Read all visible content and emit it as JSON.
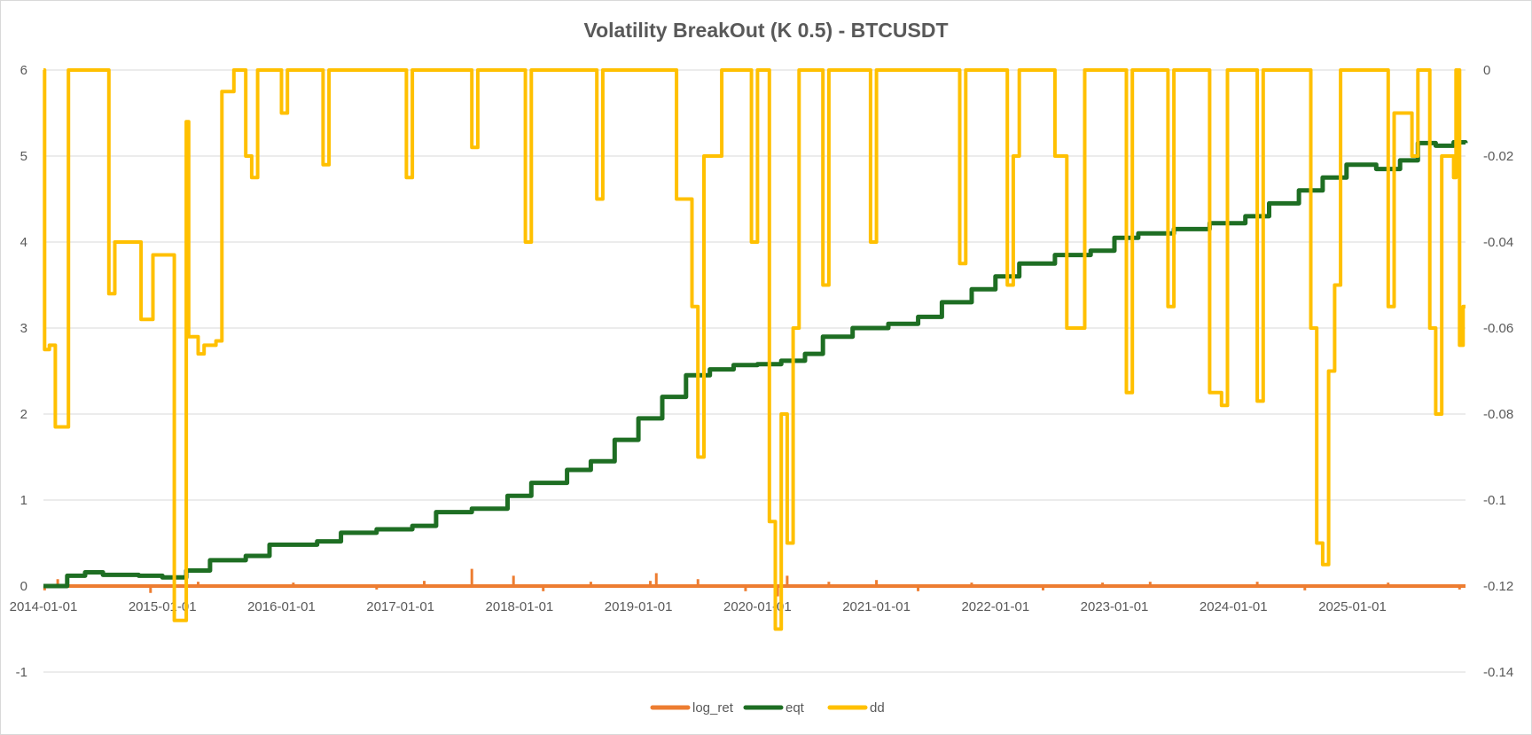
{
  "chart_data": {
    "type": "line",
    "title": "Volatility BreakOut (K 0.5) - BTCUSDT",
    "x_tick_labels": [
      "2014-01-01",
      "2015-01-01",
      "2016-01-01",
      "2017-01-01",
      "2018-01-01",
      "2019-01-01",
      "2020-01-01",
      "2021-01-01",
      "2022-01-01",
      "2023-01-01",
      "2024-01-01",
      "2025-01-01"
    ],
    "x_range": [
      2014.0,
      2025.95
    ],
    "y_left": {
      "min": -1,
      "max": 6,
      "ticks": [
        "-1",
        "0",
        "1",
        "2",
        "3",
        "4",
        "5",
        "6"
      ]
    },
    "y_right": {
      "min": -0.14,
      "max": 0,
      "ticks": [
        "-0.14",
        "-0.12",
        "-0.1",
        "-0.08",
        "-0.06",
        "-0.04",
        "-0.02",
        "0"
      ]
    },
    "grid": "horizontal",
    "legend_position": "bottom",
    "series": [
      {
        "name": "log_ret",
        "color": "#ed7d31",
        "axis": "left",
        "baseline": 0,
        "spikes": [
          [
            2014.01,
            -0.05
          ],
          [
            2014.12,
            0.08
          ],
          [
            2014.9,
            -0.08
          ],
          [
            2015.3,
            0.05
          ],
          [
            2016.1,
            0.04
          ],
          [
            2016.8,
            -0.04
          ],
          [
            2017.2,
            0.06
          ],
          [
            2017.6,
            0.2
          ],
          [
            2017.95,
            0.12
          ],
          [
            2018.2,
            -0.06
          ],
          [
            2018.6,
            0.05
          ],
          [
            2019.1,
            0.06
          ],
          [
            2019.15,
            0.15
          ],
          [
            2019.5,
            0.08
          ],
          [
            2019.9,
            -0.06
          ],
          [
            2020.17,
            -0.12
          ],
          [
            2020.25,
            0.12
          ],
          [
            2020.6,
            0.05
          ],
          [
            2021.0,
            0.07
          ],
          [
            2021.35,
            -0.06
          ],
          [
            2021.8,
            0.04
          ],
          [
            2022.4,
            -0.05
          ],
          [
            2022.9,
            0.04
          ],
          [
            2023.3,
            0.05
          ],
          [
            2024.2,
            0.05
          ],
          [
            2024.6,
            -0.05
          ],
          [
            2025.3,
            0.04
          ],
          [
            2025.9,
            -0.04
          ]
        ]
      },
      {
        "name": "eqt",
        "color": "#1e6e23",
        "axis": "left",
        "points": [
          [
            2014.0,
            0.0
          ],
          [
            2014.15,
            0.0
          ],
          [
            2014.2,
            0.12
          ],
          [
            2014.35,
            0.16
          ],
          [
            2014.5,
            0.13
          ],
          [
            2014.8,
            0.12
          ],
          [
            2015.0,
            0.1
          ],
          [
            2015.2,
            0.18
          ],
          [
            2015.4,
            0.3
          ],
          [
            2015.7,
            0.35
          ],
          [
            2015.9,
            0.48
          ],
          [
            2016.3,
            0.52
          ],
          [
            2016.5,
            0.62
          ],
          [
            2016.8,
            0.66
          ],
          [
            2017.1,
            0.7
          ],
          [
            2017.3,
            0.86
          ],
          [
            2017.6,
            0.9
          ],
          [
            2017.9,
            1.05
          ],
          [
            2018.1,
            1.2
          ],
          [
            2018.4,
            1.35
          ],
          [
            2018.6,
            1.45
          ],
          [
            2018.8,
            1.7
          ],
          [
            2019.0,
            1.95
          ],
          [
            2019.2,
            2.2
          ],
          [
            2019.4,
            2.45
          ],
          [
            2019.6,
            2.52
          ],
          [
            2019.8,
            2.57
          ],
          [
            2020.0,
            2.58
          ],
          [
            2020.2,
            2.62
          ],
          [
            2020.4,
            2.7
          ],
          [
            2020.55,
            2.9
          ],
          [
            2020.8,
            3.0
          ],
          [
            2021.1,
            3.05
          ],
          [
            2021.35,
            3.13
          ],
          [
            2021.55,
            3.3
          ],
          [
            2021.8,
            3.45
          ],
          [
            2022.0,
            3.6
          ],
          [
            2022.2,
            3.75
          ],
          [
            2022.5,
            3.85
          ],
          [
            2022.8,
            3.9
          ],
          [
            2023.0,
            4.05
          ],
          [
            2023.2,
            4.1
          ],
          [
            2023.5,
            4.15
          ],
          [
            2023.8,
            4.22
          ],
          [
            2024.1,
            4.3
          ],
          [
            2024.3,
            4.45
          ],
          [
            2024.55,
            4.6
          ],
          [
            2024.75,
            4.75
          ],
          [
            2024.95,
            4.9
          ],
          [
            2025.2,
            4.85
          ],
          [
            2025.4,
            4.95
          ],
          [
            2025.55,
            5.15
          ],
          [
            2025.7,
            5.12
          ],
          [
            2025.85,
            5.16
          ],
          [
            2025.95,
            5.15
          ]
        ]
      },
      {
        "name": "dd",
        "color": "#ffc000",
        "axis": "right",
        "points": [
          [
            2014.0,
            0.0
          ],
          [
            2014.01,
            -0.065
          ],
          [
            2014.05,
            -0.064
          ],
          [
            2014.1,
            -0.083
          ],
          [
            2014.2,
            -0.083
          ],
          [
            2014.21,
            0.0
          ],
          [
            2014.5,
            0.0
          ],
          [
            2014.55,
            -0.052
          ],
          [
            2014.6,
            -0.04
          ],
          [
            2014.8,
            -0.04
          ],
          [
            2014.82,
            -0.058
          ],
          [
            2014.9,
            -0.058
          ],
          [
            2014.92,
            -0.043
          ],
          [
            2015.05,
            -0.043
          ],
          [
            2015.1,
            -0.128
          ],
          [
            2015.18,
            -0.128
          ],
          [
            2015.2,
            -0.012
          ],
          [
            2015.22,
            -0.062
          ],
          [
            2015.3,
            -0.066
          ],
          [
            2015.35,
            -0.064
          ],
          [
            2015.45,
            -0.063
          ],
          [
            2015.5,
            -0.005
          ],
          [
            2015.6,
            0.0
          ],
          [
            2015.7,
            -0.02
          ],
          [
            2015.75,
            -0.025
          ],
          [
            2015.8,
            0.0
          ],
          [
            2016.0,
            -0.01
          ],
          [
            2016.05,
            0.0
          ],
          [
            2016.3,
            0.0
          ],
          [
            2016.35,
            -0.022
          ],
          [
            2016.4,
            0.0
          ],
          [
            2017.0,
            0.0
          ],
          [
            2017.05,
            -0.025
          ],
          [
            2017.1,
            0.0
          ],
          [
            2017.6,
            -0.018
          ],
          [
            2017.65,
            0.0
          ],
          [
            2018.0,
            0.0
          ],
          [
            2018.05,
            -0.04
          ],
          [
            2018.1,
            0.0
          ],
          [
            2018.6,
            0.0
          ],
          [
            2018.65,
            -0.03
          ],
          [
            2018.7,
            0.0
          ],
          [
            2019.3,
            0.0
          ],
          [
            2019.32,
            -0.03
          ],
          [
            2019.4,
            -0.03
          ],
          [
            2019.45,
            -0.055
          ],
          [
            2019.5,
            -0.09
          ],
          [
            2019.55,
            -0.02
          ],
          [
            2019.7,
            0.0
          ],
          [
            2019.9,
            0.0
          ],
          [
            2019.95,
            -0.04
          ],
          [
            2020.0,
            0.0
          ],
          [
            2020.1,
            -0.105
          ],
          [
            2020.15,
            -0.13
          ],
          [
            2020.2,
            -0.08
          ],
          [
            2020.25,
            -0.11
          ],
          [
            2020.3,
            -0.06
          ],
          [
            2020.35,
            0.0
          ],
          [
            2020.5,
            0.0
          ],
          [
            2020.55,
            -0.05
          ],
          [
            2020.6,
            0.0
          ],
          [
            2020.9,
            0.0
          ],
          [
            2020.95,
            -0.04
          ],
          [
            2021.0,
            0.0
          ],
          [
            2021.6,
            0.0
          ],
          [
            2021.7,
            -0.045
          ],
          [
            2021.75,
            0.0
          ],
          [
            2022.0,
            0.0
          ],
          [
            2022.1,
            -0.05
          ],
          [
            2022.15,
            -0.02
          ],
          [
            2022.2,
            0.0
          ],
          [
            2022.5,
            -0.02
          ],
          [
            2022.6,
            -0.06
          ],
          [
            2022.7,
            -0.06
          ],
          [
            2022.75,
            0.0
          ],
          [
            2023.0,
            0.0
          ],
          [
            2023.1,
            -0.075
          ],
          [
            2023.15,
            0.0
          ],
          [
            2023.4,
            0.0
          ],
          [
            2023.45,
            -0.055
          ],
          [
            2023.5,
            0.0
          ],
          [
            2023.8,
            -0.075
          ],
          [
            2023.9,
            -0.078
          ],
          [
            2023.95,
            0.0
          ],
          [
            2024.2,
            -0.077
          ],
          [
            2024.25,
            0.0
          ],
          [
            2024.6,
            0.0
          ],
          [
            2024.65,
            -0.06
          ],
          [
            2024.7,
            -0.11
          ],
          [
            2024.75,
            -0.115
          ],
          [
            2024.8,
            -0.07
          ],
          [
            2024.85,
            -0.05
          ],
          [
            2024.9,
            0.0
          ],
          [
            2025.2,
            0.0
          ],
          [
            2025.3,
            -0.055
          ],
          [
            2025.35,
            -0.01
          ],
          [
            2025.5,
            -0.02
          ],
          [
            2025.55,
            0.0
          ],
          [
            2025.65,
            -0.06
          ],
          [
            2025.7,
            -0.08
          ],
          [
            2025.75,
            -0.02
          ],
          [
            2025.85,
            -0.025
          ],
          [
            2025.87,
            0.0
          ],
          [
            2025.9,
            -0.064
          ],
          [
            2025.93,
            -0.055
          ],
          [
            2025.95,
            -0.055
          ]
        ]
      }
    ]
  }
}
